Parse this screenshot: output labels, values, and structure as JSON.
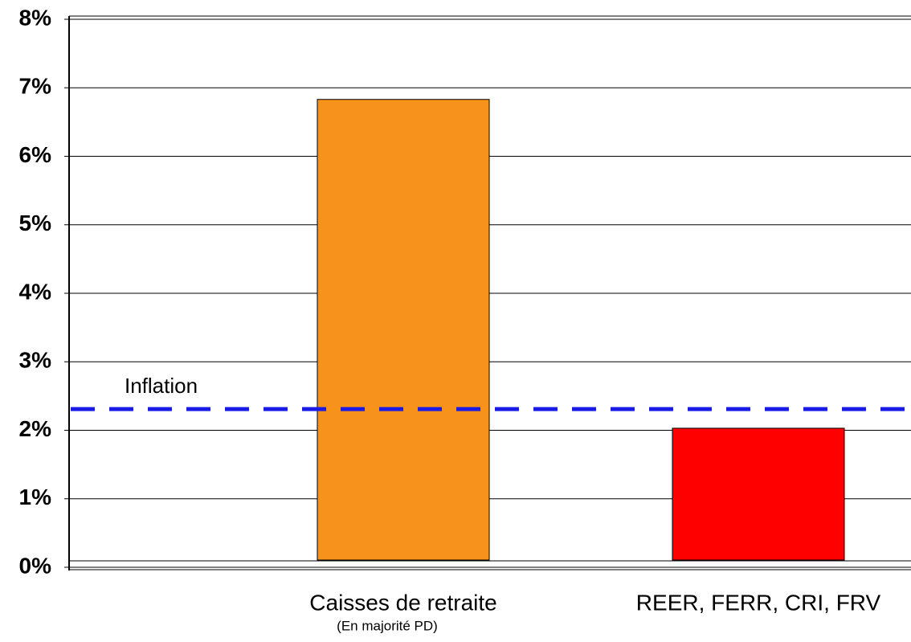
{
  "chart_data": {
    "type": "bar",
    "categories": [
      "Caisses de retraite",
      "REER, FERR, CRI, FRV"
    ],
    "category_notes": [
      "(En majorité PD)",
      null
    ],
    "values": [
      6.83,
      2.03
    ],
    "colors": [
      "#f7931a",
      "#ff0000"
    ],
    "ylim": [
      0,
      8
    ],
    "yticks": [
      {
        "value": 0,
        "label": "0%"
      },
      {
        "value": 1,
        "label": "1%"
      },
      {
        "value": 2,
        "label": "2%"
      },
      {
        "value": 3,
        "label": "3%"
      },
      {
        "value": 4,
        "label": "4%"
      },
      {
        "value": 5,
        "label": "5%"
      },
      {
        "value": 6,
        "label": "6%"
      },
      {
        "value": 7,
        "label": "7%"
      },
      {
        "value": 8,
        "label": "8%"
      }
    ],
    "grid": true,
    "reference_lines": [
      {
        "label": "Inflation",
        "value": 2.31,
        "color": "#1a1ae6"
      }
    ]
  }
}
